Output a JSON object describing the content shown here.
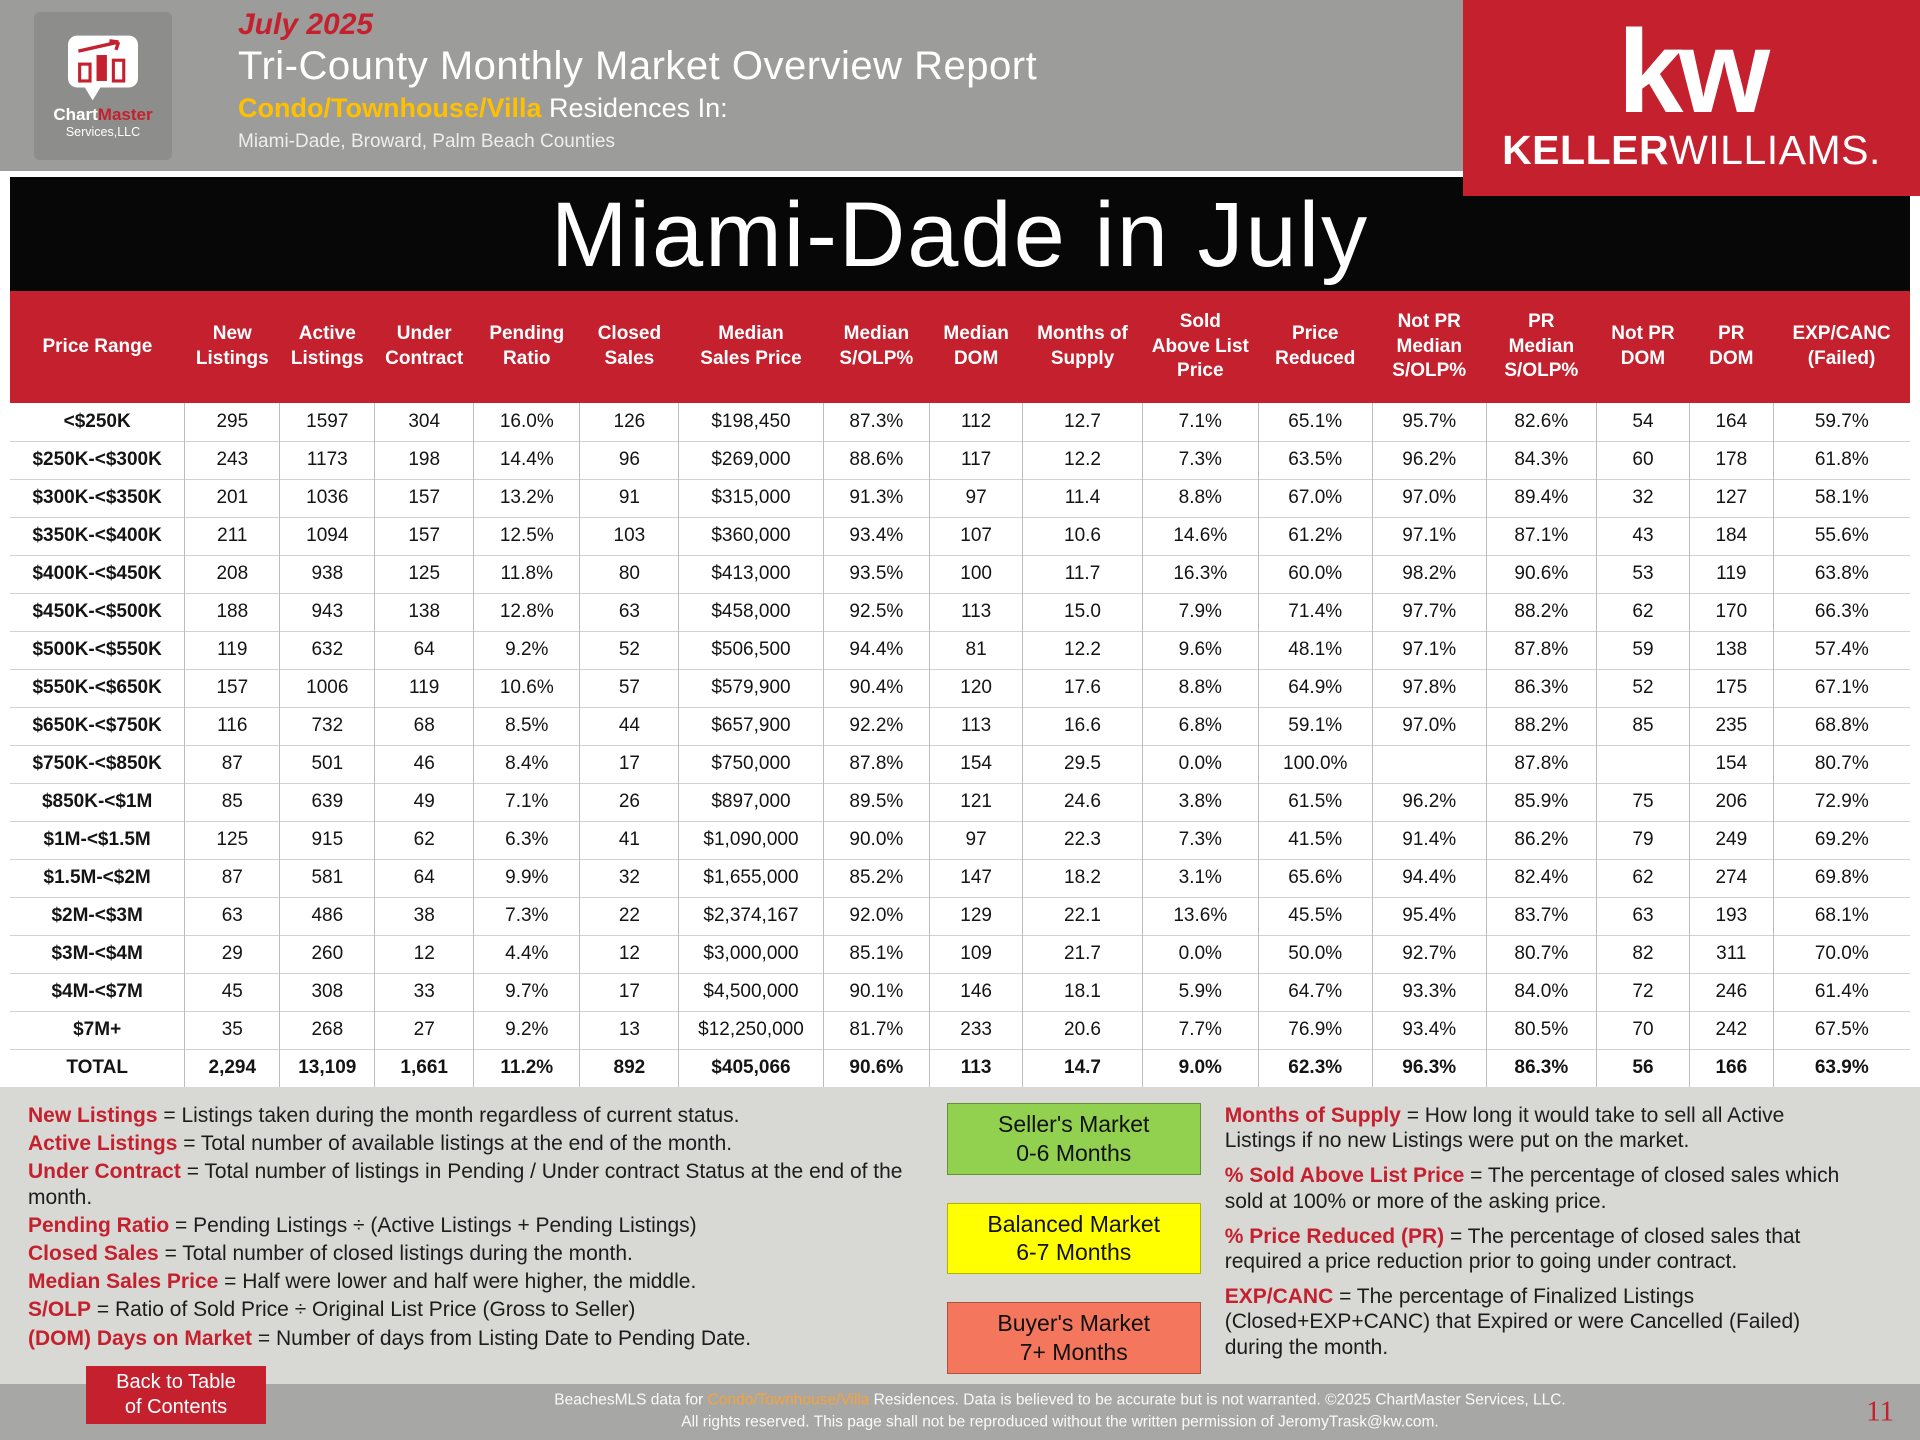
{
  "colors": {
    "brand_red": "#c5202e",
    "supply_highlight": "#f08364",
    "subtitle_gold": "#ffc000"
  },
  "header": {
    "logo": {
      "brand_a": "Chart",
      "brand_b": "Master",
      "line2": "Services,LLC"
    },
    "month": "July 2025",
    "title": "Tri-County Monthly Market Overview Report",
    "subtitle": {
      "highlight": "Condo/Townhouse/Villa",
      "rest": " Residences In:"
    },
    "counties": "Miami-Dade, Broward, Palm Beach Counties",
    "kw": {
      "mark": "kw",
      "name_bold": "KELLER",
      "name_light": "WILLIAMS."
    }
  },
  "page_title": "Miami-Dade in July",
  "table": {
    "supply_col": 9,
    "columns": [
      "Price Range",
      "New\nListings",
      "Active\nListings",
      "Under\nContract",
      "Pending\nRatio",
      "Closed\nSales",
      "Median\nSales Price",
      "Median\nS/OLP%",
      "Median\nDOM",
      "Months of\nSupply",
      "Sold\nAbove List\nPrice",
      "Price\nReduced",
      "Not PR\nMedian\nS/OLP%",
      "PR\nMedian\nS/OLP%",
      "Not PR\nDOM",
      "PR\nDOM",
      "EXP/CANC\n(Failed)"
    ],
    "rows": [
      [
        "<$250K",
        "295",
        "1597",
        "304",
        "16.0%",
        "126",
        "$198,450",
        "87.3%",
        "112",
        "12.7",
        "7.1%",
        "65.1%",
        "95.7%",
        "82.6%",
        "54",
        "164",
        "59.7%"
      ],
      [
        "$250K-<$300K",
        "243",
        "1173",
        "198",
        "14.4%",
        "96",
        "$269,000",
        "88.6%",
        "117",
        "12.2",
        "7.3%",
        "63.5%",
        "96.2%",
        "84.3%",
        "60",
        "178",
        "61.8%"
      ],
      [
        "$300K-<$350K",
        "201",
        "1036",
        "157",
        "13.2%",
        "91",
        "$315,000",
        "91.3%",
        "97",
        "11.4",
        "8.8%",
        "67.0%",
        "97.0%",
        "89.4%",
        "32",
        "127",
        "58.1%"
      ],
      [
        "$350K-<$400K",
        "211",
        "1094",
        "157",
        "12.5%",
        "103",
        "$360,000",
        "93.4%",
        "107",
        "10.6",
        "14.6%",
        "61.2%",
        "97.1%",
        "87.1%",
        "43",
        "184",
        "55.6%"
      ],
      [
        "$400K-<$450K",
        "208",
        "938",
        "125",
        "11.8%",
        "80",
        "$413,000",
        "93.5%",
        "100",
        "11.7",
        "16.3%",
        "60.0%",
        "98.2%",
        "90.6%",
        "53",
        "119",
        "63.8%"
      ],
      [
        "$450K-<$500K",
        "188",
        "943",
        "138",
        "12.8%",
        "63",
        "$458,000",
        "92.5%",
        "113",
        "15.0",
        "7.9%",
        "71.4%",
        "97.7%",
        "88.2%",
        "62",
        "170",
        "66.3%"
      ],
      [
        "$500K-<$550K",
        "119",
        "632",
        "64",
        "9.2%",
        "52",
        "$506,500",
        "94.4%",
        "81",
        "12.2",
        "9.6%",
        "48.1%",
        "97.1%",
        "87.8%",
        "59",
        "138",
        "57.4%"
      ],
      [
        "$550K-<$650K",
        "157",
        "1006",
        "119",
        "10.6%",
        "57",
        "$579,900",
        "90.4%",
        "120",
        "17.6",
        "8.8%",
        "64.9%",
        "97.8%",
        "86.3%",
        "52",
        "175",
        "67.1%"
      ],
      [
        "$650K-<$750K",
        "116",
        "732",
        "68",
        "8.5%",
        "44",
        "$657,900",
        "92.2%",
        "113",
        "16.6",
        "6.8%",
        "59.1%",
        "97.0%",
        "88.2%",
        "85",
        "235",
        "68.8%"
      ],
      [
        "$750K-<$850K",
        "87",
        "501",
        "46",
        "8.4%",
        "17",
        "$750,000",
        "87.8%",
        "154",
        "29.5",
        "0.0%",
        "100.0%",
        "",
        "87.8%",
        "",
        "154",
        "80.7%"
      ],
      [
        "$850K-<$1M",
        "85",
        "639",
        "49",
        "7.1%",
        "26",
        "$897,000",
        "89.5%",
        "121",
        "24.6",
        "3.8%",
        "61.5%",
        "96.2%",
        "85.9%",
        "75",
        "206",
        "72.9%"
      ],
      [
        "$1M-<$1.5M",
        "125",
        "915",
        "62",
        "6.3%",
        "41",
        "$1,090,000",
        "90.0%",
        "97",
        "22.3",
        "7.3%",
        "41.5%",
        "91.4%",
        "86.2%",
        "79",
        "249",
        "69.2%"
      ],
      [
        "$1.5M-<$2M",
        "87",
        "581",
        "64",
        "9.9%",
        "32",
        "$1,655,000",
        "85.2%",
        "147",
        "18.2",
        "3.1%",
        "65.6%",
        "94.4%",
        "82.4%",
        "62",
        "274",
        "69.8%"
      ],
      [
        "$2M-<$3M",
        "63",
        "486",
        "38",
        "7.3%",
        "22",
        "$2,374,167",
        "92.0%",
        "129",
        "22.1",
        "13.6%",
        "45.5%",
        "95.4%",
        "83.7%",
        "63",
        "193",
        "68.1%"
      ],
      [
        "$3M-<$4M",
        "29",
        "260",
        "12",
        "4.4%",
        "12",
        "$3,000,000",
        "85.1%",
        "109",
        "21.7",
        "0.0%",
        "50.0%",
        "92.7%",
        "80.7%",
        "82",
        "311",
        "70.0%"
      ],
      [
        "$4M-<$7M",
        "45",
        "308",
        "33",
        "9.7%",
        "17",
        "$4,500,000",
        "90.1%",
        "146",
        "18.1",
        "5.9%",
        "64.7%",
        "93.3%",
        "84.0%",
        "72",
        "246",
        "61.4%"
      ],
      [
        "$7M+",
        "35",
        "268",
        "27",
        "9.2%",
        "13",
        "$12,250,000",
        "81.7%",
        "233",
        "20.6",
        "7.7%",
        "76.9%",
        "93.4%",
        "80.5%",
        "70",
        "242",
        "67.5%"
      ],
      [
        "TOTAL",
        "2,294",
        "13,109",
        "1,661",
        "11.2%",
        "892",
        "$405,066",
        "90.6%",
        "113",
        "14.7",
        "9.0%",
        "62.3%",
        "96.3%",
        "86.3%",
        "56",
        "166",
        "63.9%"
      ]
    ]
  },
  "definitions_left": [
    {
      "term": "New Listings",
      "text": " = Listings taken during the month regardless of current status."
    },
    {
      "term": "Active Listings",
      "text": " = Total number of available listings at the end of the month."
    },
    {
      "term": "Under Contract",
      "text": " = Total number of listings in Pending / Under contract Status at the end of the month."
    },
    {
      "term": "Pending Ratio",
      "text": " = Pending Listings ÷ (Active Listings + Pending Listings)"
    },
    {
      "term": "Closed Sales",
      "text": " = Total number of closed listings during the month."
    },
    {
      "term": "Median Sales Price",
      "text": " = Half were lower and half were higher, the middle."
    },
    {
      "term": "S/OLP",
      "text": " = Ratio of Sold Price ÷ Original List Price (Gross to Seller)"
    },
    {
      "term": "(DOM) Days on Market",
      "text": " = Number of days from Listing Date to Pending Date."
    }
  ],
  "definitions_right": [
    {
      "term": "Months of Supply",
      "text": " = How long it would take to sell all Active Listings if no new Listings were put on the market."
    },
    {
      "term": "% Sold Above List Price",
      "text": " = The percentage of closed sales which sold at 100% or more of the asking price."
    },
    {
      "term": "% Price Reduced (PR)",
      "text": " = The percentage of closed sales that required a price reduction prior to going under contract."
    },
    {
      "term": "EXP/CANC",
      "text": " = The percentage of Finalized Listings (Closed+EXP+CANC) that Expired or were Cancelled (Failed) during the month."
    }
  ],
  "legend": [
    {
      "label": "Seller's Market",
      "range": "0-6 Months",
      "bg": "#92d050"
    },
    {
      "label": "Balanced Market",
      "range": "6-7 Months",
      "bg": "#ffff00"
    },
    {
      "label": "Buyer's Market",
      "range": "7+ Months",
      "bg": "#f4765c"
    }
  ],
  "bottom": {
    "back_button": "Back to Table\nof Contents",
    "disclaimer_line1_pre": "BeachesMLS data for ",
    "disclaimer_highlight": "Condo/Townhouse/Villa",
    "disclaimer_line1_post": " Residences.  Data is believed to be accurate but is not warranted.   ©2025  ChartMaster Services, LLC.",
    "disclaimer_line2": "All rights reserved. This page shall not be reproduced without the written permission of JeromyTrask@kw.com.",
    "page_number": "11"
  }
}
